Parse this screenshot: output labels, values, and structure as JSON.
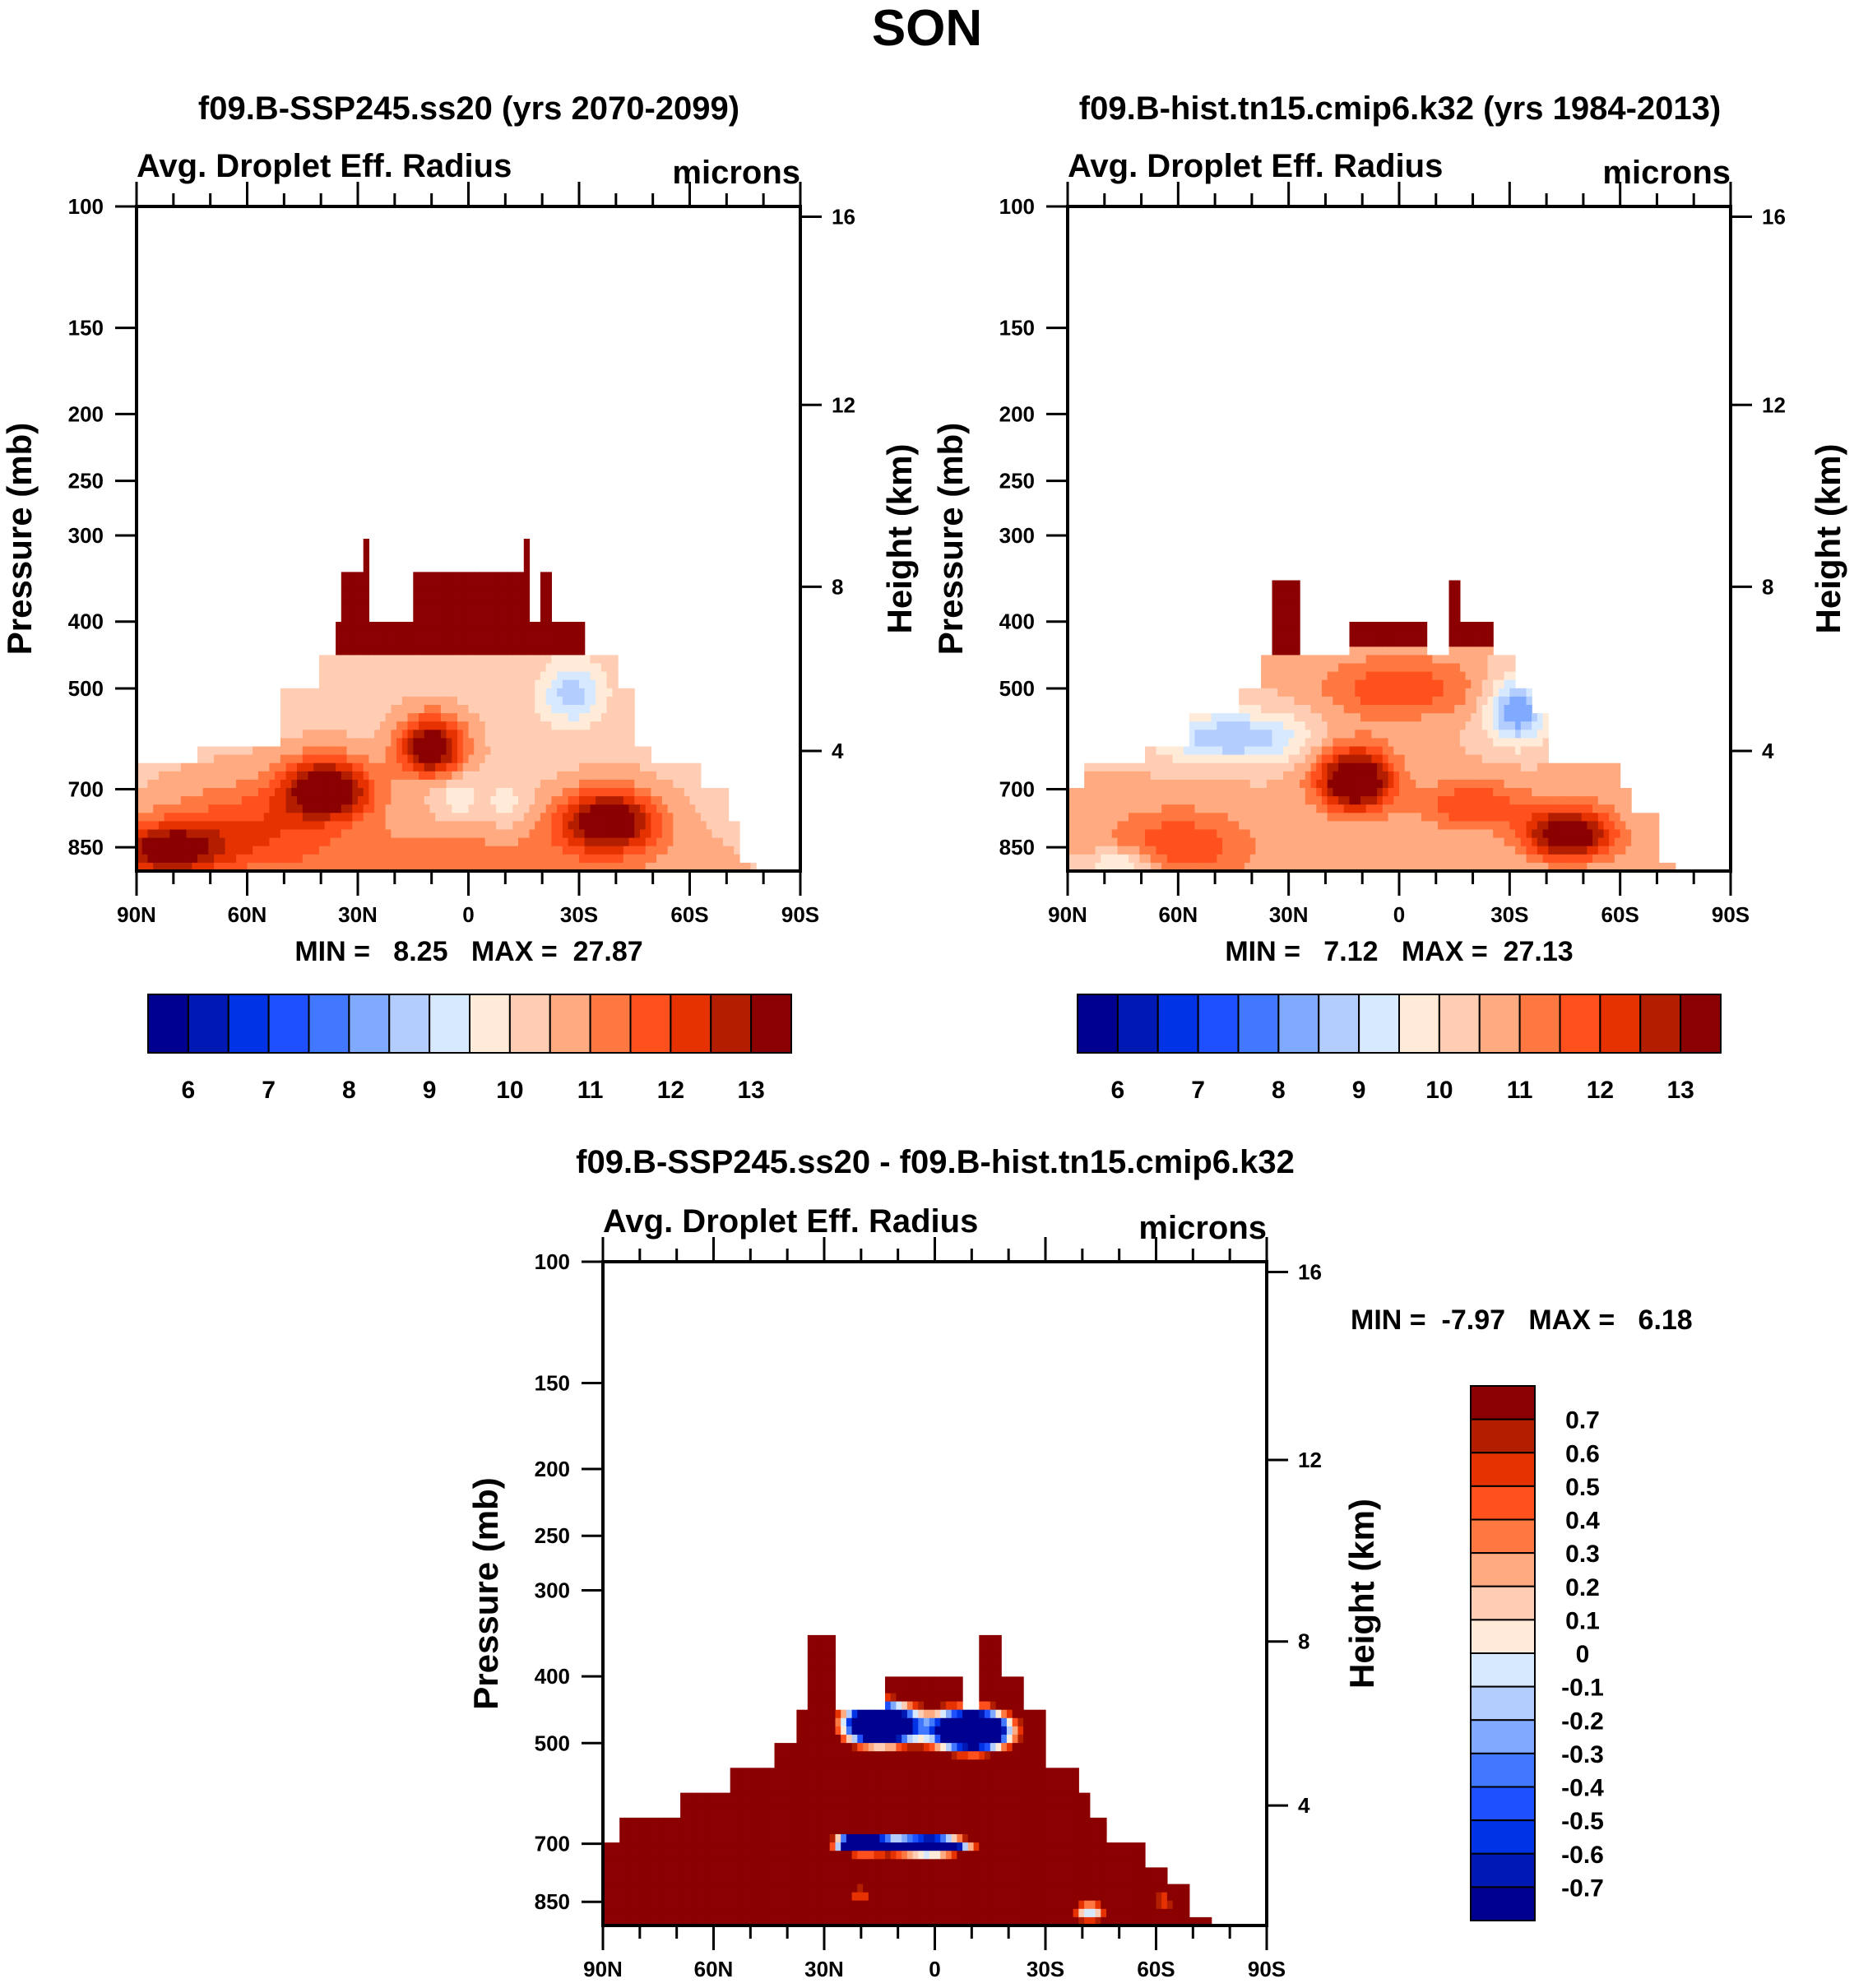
{
  "page_title": "SON",
  "colors": [
    "#000090",
    "#0019b4",
    "#0032e6",
    "#1e50ff",
    "#4178ff",
    "#80aaff",
    "#b4cdff",
    "#d7e9ff",
    "#ffebd7",
    "#ffcdb4",
    "#ffaa80",
    "#ff7841",
    "#ff501e",
    "#e63200",
    "#b41e00",
    "#8b0000"
  ],
  "chart_data": [
    {
      "type": "heatmap",
      "title": "f09.B-SSP245.ss20 (yrs 2070-2099)",
      "subtitle": "Avg. Droplet Eff. Radius",
      "units": "microns",
      "ylabel": "Pressure (mb)",
      "y2label": "Height (km)",
      "min_max": "MIN =   8.25   MAX =  27.87",
      "xlim": [
        90,
        -90
      ],
      "ylim": [
        100,
        920
      ],
      "x_ticks": [
        {
          "lat": 90,
          "label": "90N"
        },
        {
          "lat": 60,
          "label": "60N"
        },
        {
          "lat": 30,
          "label": "30N"
        },
        {
          "lat": 0,
          "label": "0"
        },
        {
          "lat": -30,
          "label": "30S"
        },
        {
          "lat": -60,
          "label": "60S"
        },
        {
          "lat": -90,
          "label": "90S"
        }
      ],
      "y_ticks": [
        {
          "p": 100,
          "label": "100"
        },
        {
          "p": 150,
          "label": "150"
        },
        {
          "p": 200,
          "label": "200"
        },
        {
          "p": 250,
          "label": "250"
        },
        {
          "p": 300,
          "label": "300"
        },
        {
          "p": 400,
          "label": "400"
        },
        {
          "p": 500,
          "label": "500"
        },
        {
          "p": 700,
          "label": "700"
        },
        {
          "p": 850,
          "label": "850"
        }
      ],
      "y2_ticks": [
        {
          "p": 103.5,
          "label": "16"
        },
        {
          "p": 194,
          "label": "12"
        },
        {
          "p": 356,
          "label": "8"
        },
        {
          "p": 616,
          "label": "4"
        }
      ],
      "levels": [
        6,
        6.5,
        7,
        7.5,
        8,
        8.5,
        9,
        9.5,
        10,
        10.5,
        11,
        11.5,
        12,
        12.5,
        13
      ],
      "colorbar_labels": [
        {
          "level": 6,
          "label": "6"
        },
        {
          "level": 7,
          "label": "7"
        },
        {
          "level": 8,
          "label": "8"
        },
        {
          "level": 9,
          "label": "9"
        },
        {
          "level": 10,
          "label": "10"
        },
        {
          "level": 11,
          "label": "11"
        },
        {
          "level": 12,
          "label": "12"
        },
        {
          "level": 13,
          "label": "13"
        }
      ],
      "field": {
        "base": 10.3,
        "mask_top_p": [
          [
            90,
            72.8,
            647
          ],
          [
            72.8,
            50.8,
            600
          ],
          [
            50.8,
            41.2,
            500
          ],
          [
            41.2,
            36.1,
            448
          ],
          [
            36.1,
            35,
            400
          ],
          [
            35,
            26.5,
            342
          ],
          [
            28,
            27,
            300
          ],
          [
            26.5,
            14.4,
            400
          ],
          [
            14.4,
            -17,
            342
          ],
          [
            -15,
            -16,
            300
          ],
          [
            -17,
            -20,
            400
          ],
          [
            -20,
            -22,
            342
          ],
          [
            -22,
            -30.9,
            400
          ],
          [
            -30.9,
            -40.5,
            448
          ],
          [
            -40.5,
            -44.7,
            500
          ],
          [
            -44.7,
            -49.8,
            600
          ],
          [
            -49.8,
            -63.6,
            647
          ],
          [
            -63.6,
            -70.4,
            700
          ],
          [
            -70.4,
            -73.8,
            780
          ],
          [
            -73.8,
            -78,
            900
          ]
        ],
        "caps": [
          {
            "from": 36.1,
            "to": -30.9,
            "bottom_p": 445
          }
        ],
        "blobs": [
          {
            "lat": 38.5,
            "p": 700,
            "amp": 3.5,
            "wl": 12,
            "wp": 70
          },
          {
            "lat": 10,
            "p": 610,
            "amp": 3.5,
            "wl": 9,
            "wp": 60
          },
          {
            "lat": -38,
            "p": 780,
            "amp": 3.5,
            "wl": 13,
            "wp": 80
          },
          {
            "lat": 82,
            "p": 860,
            "amp": 3,
            "wl": 14,
            "wp": 70
          },
          {
            "lat": 60,
            "p": 800,
            "amp": 1.5,
            "wl": 25,
            "wp": 120
          },
          {
            "lat": -28,
            "p": 510,
            "amp": -1.6,
            "wl": 8,
            "wp": 50
          },
          {
            "lat": 3,
            "p": 720,
            "amp": -0.8,
            "wl": 6,
            "wp": 60
          },
          {
            "lat": -10,
            "p": 740,
            "amp": -0.7,
            "wl": 6,
            "wp": 60
          },
          {
            "lat": 0,
            "p": 920,
            "amp": 1,
            "wl": 60,
            "wp": 150
          }
        ]
      }
    },
    {
      "type": "heatmap",
      "title": "f09.B-hist.tn15.cmip6.k32 (yrs 1984-2013)",
      "subtitle": "Avg. Droplet Eff. Radius",
      "units": "microns",
      "ylabel": "Pressure (mb)",
      "y2label": "Height (km)",
      "min_max": "MIN =   7.12   MAX =  27.13",
      "xlim": [
        90,
        -90
      ],
      "ylim": [
        100,
        920
      ],
      "x_ticks": [
        {
          "lat": 90,
          "label": "90N"
        },
        {
          "lat": 60,
          "label": "60N"
        },
        {
          "lat": 30,
          "label": "30N"
        },
        {
          "lat": 0,
          "label": "0"
        },
        {
          "lat": -30,
          "label": "30S"
        },
        {
          "lat": -60,
          "label": "60S"
        },
        {
          "lat": -90,
          "label": "90S"
        }
      ],
      "y_ticks": [
        {
          "p": 100,
          "label": "100"
        },
        {
          "p": 150,
          "label": "150"
        },
        {
          "p": 200,
          "label": "200"
        },
        {
          "p": 250,
          "label": "250"
        },
        {
          "p": 300,
          "label": "300"
        },
        {
          "p": 400,
          "label": "400"
        },
        {
          "p": 500,
          "label": "500"
        },
        {
          "p": 700,
          "label": "700"
        },
        {
          "p": 850,
          "label": "850"
        }
      ],
      "y2_ticks": [
        {
          "p": 103.5,
          "label": "16"
        },
        {
          "p": 194,
          "label": "12"
        },
        {
          "p": 356,
          "label": "8"
        },
        {
          "p": 616,
          "label": "4"
        }
      ],
      "levels": [
        6,
        6.5,
        7,
        7.5,
        8,
        8.5,
        9,
        9.5,
        10,
        10.5,
        11,
        11.5,
        12,
        12.5,
        13
      ],
      "colorbar_labels": [
        {
          "level": 6,
          "label": "6"
        },
        {
          "level": 7,
          "label": "7"
        },
        {
          "level": 8,
          "label": "8"
        },
        {
          "level": 9,
          "label": "9"
        },
        {
          "level": 10,
          "label": "10"
        },
        {
          "level": 11,
          "label": "11"
        },
        {
          "level": 12,
          "label": "12"
        },
        {
          "level": 13,
          "label": "13"
        }
      ],
      "field": {
        "base": 10.5,
        "mask_top_p": [
          [
            90,
            85.2,
            700
          ],
          [
            85.2,
            69.4,
            647
          ],
          [
            69.4,
            56.7,
            600
          ],
          [
            56.7,
            43.6,
            548
          ],
          [
            43.6,
            36.8,
            500
          ],
          [
            36.8,
            34.4,
            448
          ],
          [
            34.4,
            27.5,
            351
          ],
          [
            27.5,
            13.7,
            448
          ],
          [
            13.7,
            -6.9,
            400
          ],
          [
            -6.9,
            -13.7,
            448
          ],
          [
            -13.7,
            -17.2,
            351
          ],
          [
            -17.2,
            -25.8,
            400
          ],
          [
            -25.8,
            -30.9,
            448
          ],
          [
            -30.9,
            -36.1,
            500
          ],
          [
            -36.1,
            -40.2,
            548
          ],
          [
            -40.2,
            -60.1,
            647
          ],
          [
            -60.1,
            -63.6,
            700
          ],
          [
            -63.6,
            -70.4,
            750
          ],
          [
            -70.4,
            -75.6,
            900
          ]
        ],
        "caps": [
          {
            "from": 34.4,
            "to": 27.5,
            "bottom_p": 450
          },
          {
            "from": 13.7,
            "to": -6.9,
            "bottom_p": 440
          },
          {
            "from": -13.7,
            "to": -25.8,
            "bottom_p": 440
          }
        ],
        "blobs": [
          {
            "lat": 12,
            "p": 680,
            "amp": 4,
            "wl": 10,
            "wp": 70
          },
          {
            "lat": -46,
            "p": 815,
            "amp": 3.5,
            "wl": 12,
            "wp": 70
          },
          {
            "lat": 45,
            "p": 590,
            "amp": -2,
            "wl": 20,
            "wp": 50
          },
          {
            "lat": -32,
            "p": 540,
            "amp": -2.5,
            "wl": 8,
            "wp": 60
          },
          {
            "lat": 0,
            "p": 500,
            "amp": 1.5,
            "wl": 20,
            "wp": 50
          },
          {
            "lat": 60,
            "p": 850,
            "amp": 1.5,
            "wl": 20,
            "wp": 100
          },
          {
            "lat": -20,
            "p": 740,
            "amp": 1.5,
            "wl": 15,
            "wp": 60
          },
          {
            "lat": 75,
            "p": 900,
            "amp": -1.5,
            "wl": 10,
            "wp": 50
          }
        ]
      }
    },
    {
      "type": "heatmap",
      "title": "f09.B-SSP245.ss20 - f09.B-hist.tn15.cmip6.k32",
      "subtitle": "Avg. Droplet Eff. Radius",
      "units": "microns",
      "ylabel": "Pressure (mb)",
      "y2label": "Height (km)",
      "min_max": "MIN =  -7.97   MAX =   6.18",
      "xlim": [
        90,
        -90
      ],
      "ylim": [
        100,
        920
      ],
      "x_ticks": [
        {
          "lat": 90,
          "label": "90N"
        },
        {
          "lat": 60,
          "label": "60N"
        },
        {
          "lat": 30,
          "label": "30N"
        },
        {
          "lat": 0,
          "label": "0"
        },
        {
          "lat": -30,
          "label": "30S"
        },
        {
          "lat": -60,
          "label": "60S"
        },
        {
          "lat": -90,
          "label": "90S"
        }
      ],
      "y_ticks": [
        {
          "p": 100,
          "label": "100"
        },
        {
          "p": 150,
          "label": "150"
        },
        {
          "p": 200,
          "label": "200"
        },
        {
          "p": 250,
          "label": "250"
        },
        {
          "p": 300,
          "label": "300"
        },
        {
          "p": 400,
          "label": "400"
        },
        {
          "p": 500,
          "label": "500"
        },
        {
          "p": 700,
          "label": "700"
        },
        {
          "p": 850,
          "label": "850"
        }
      ],
      "y2_ticks": [
        {
          "p": 103.5,
          "label": "16"
        },
        {
          "p": 194,
          "label": "12"
        },
        {
          "p": 356,
          "label": "8"
        },
        {
          "p": 616,
          "label": "4"
        }
      ],
      "levels": [
        -0.7,
        -0.6,
        -0.5,
        -0.4,
        -0.3,
        -0.2,
        -0.1,
        0,
        0.1,
        0.2,
        0.3,
        0.4,
        0.5,
        0.6,
        0.7
      ],
      "colorbar_labels": [
        {
          "level": 0.7,
          "label": "0.7"
        },
        {
          "level": 0.6,
          "label": "0.6"
        },
        {
          "level": 0.5,
          "label": "0.5"
        },
        {
          "level": 0.4,
          "label": "0.4"
        },
        {
          "level": 0.3,
          "label": "0.3"
        },
        {
          "level": 0.2,
          "label": "0.2"
        },
        {
          "level": 0.1,
          "label": "0.1"
        },
        {
          "level": 0,
          "label": "0"
        },
        {
          "level": -0.1,
          "label": "-0.1"
        },
        {
          "level": -0.2,
          "label": "-0.2"
        },
        {
          "level": -0.3,
          "label": "-0.3"
        },
        {
          "level": -0.4,
          "label": "-0.4"
        },
        {
          "level": -0.5,
          "label": "-0.5"
        },
        {
          "level": -0.6,
          "label": "-0.6"
        },
        {
          "level": -0.7,
          "label": "-0.7"
        }
      ],
      "field": {
        "base": 1.5,
        "mask_top_p": [
          [
            90,
            85.2,
            700
          ],
          [
            85.2,
            69.7,
            647
          ],
          [
            69.7,
            56,
            595
          ],
          [
            56,
            44,
            547
          ],
          [
            44,
            37.8,
            506
          ],
          [
            37.8,
            34.4,
            446
          ],
          [
            34.4,
            26.8,
            349
          ],
          [
            26.8,
            14.1,
            446
          ],
          [
            14.1,
            -7.6,
            398
          ],
          [
            -7.6,
            -12.7,
            446
          ],
          [
            -12.7,
            -17.9,
            349
          ],
          [
            -17.9,
            -24.7,
            398
          ],
          [
            -24.7,
            -29.9,
            446
          ],
          [
            -29.9,
            -38.5,
            547
          ],
          [
            -38.5,
            -41.9,
            595
          ],
          [
            -41.9,
            -47,
            647
          ],
          [
            -47,
            -57.4,
            700
          ],
          [
            -57.4,
            -62.5,
            760
          ],
          [
            -62.5,
            -69.4,
            800
          ],
          [
            -69.4,
            -74.5,
            900
          ]
        ],
        "caps": [],
        "blobs": [
          {
            "lat": 20,
            "p": 700,
            "amp": -4,
            "wl": 7,
            "wp": 22
          },
          {
            "lat": 2,
            "p": 705,
            "amp": -4,
            "wl": 11,
            "wp": 22
          },
          {
            "lat": 15,
            "p": 470,
            "amp": -4,
            "wl": 10,
            "wp": 35
          },
          {
            "lat": -10,
            "p": 480,
            "amp": -4,
            "wl": 11,
            "wp": 35
          },
          {
            "lat": -42,
            "p": 880,
            "amp": -1.6,
            "wl": 5,
            "wp": 40
          },
          {
            "lat": 20,
            "p": 830,
            "amp": -1.0,
            "wl": 6,
            "wp": 40
          },
          {
            "lat": -62,
            "p": 850,
            "amp": -1.0,
            "wl": 4,
            "wp": 60
          }
        ]
      }
    }
  ]
}
